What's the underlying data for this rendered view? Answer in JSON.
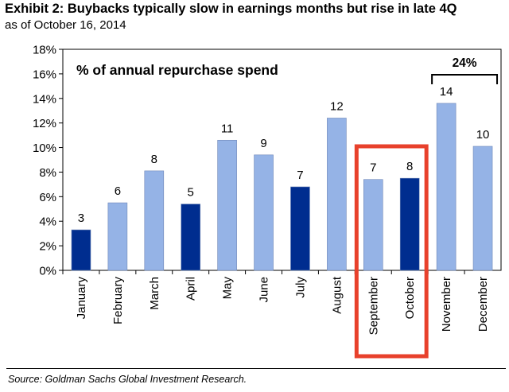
{
  "header": {
    "title": "Exhibit 2: Buybacks typically slow in earnings months but rise in late 4Q",
    "subtitle": "as of October 16, 2014"
  },
  "footer": {
    "source": "Source: Goldman Sachs Global Investment Research."
  },
  "chart_data": {
    "type": "bar",
    "title": "% of annual repurchase spend",
    "xlabel": "",
    "ylabel": "",
    "ylim": [
      0,
      18
    ],
    "y_ticks": [
      0,
      2,
      4,
      6,
      8,
      10,
      12,
      14,
      16,
      18
    ],
    "y_tick_labels": [
      "0%",
      "2%",
      "4%",
      "6%",
      "8%",
      "10%",
      "12%",
      "14%",
      "16%",
      "18%"
    ],
    "categories": [
      "January",
      "February",
      "March",
      "April",
      "May",
      "June",
      "July",
      "August",
      "September",
      "October",
      "November",
      "December"
    ],
    "values": [
      3.3,
      5.5,
      8.1,
      5.4,
      10.6,
      9.4,
      6.8,
      12.4,
      7.4,
      7.5,
      13.6,
      10.1
    ],
    "data_labels": [
      "3",
      "6",
      "8",
      "5",
      "11",
      "9",
      "7",
      "12",
      "7",
      "8",
      "14",
      "10"
    ],
    "highlight": [
      true,
      false,
      false,
      true,
      false,
      false,
      true,
      false,
      false,
      true,
      false,
      false
    ],
    "colors": {
      "normal": "#95b3e6",
      "highlight": "#002d8f",
      "highlight_box": "#e8412c",
      "bar_edge": "#6f87b8"
    },
    "annotations": {
      "highlight_box": {
        "from_category": "September",
        "to_category": "October"
      },
      "bracket": {
        "label": "24%",
        "from_category": "November",
        "to_category": "December"
      }
    }
  }
}
